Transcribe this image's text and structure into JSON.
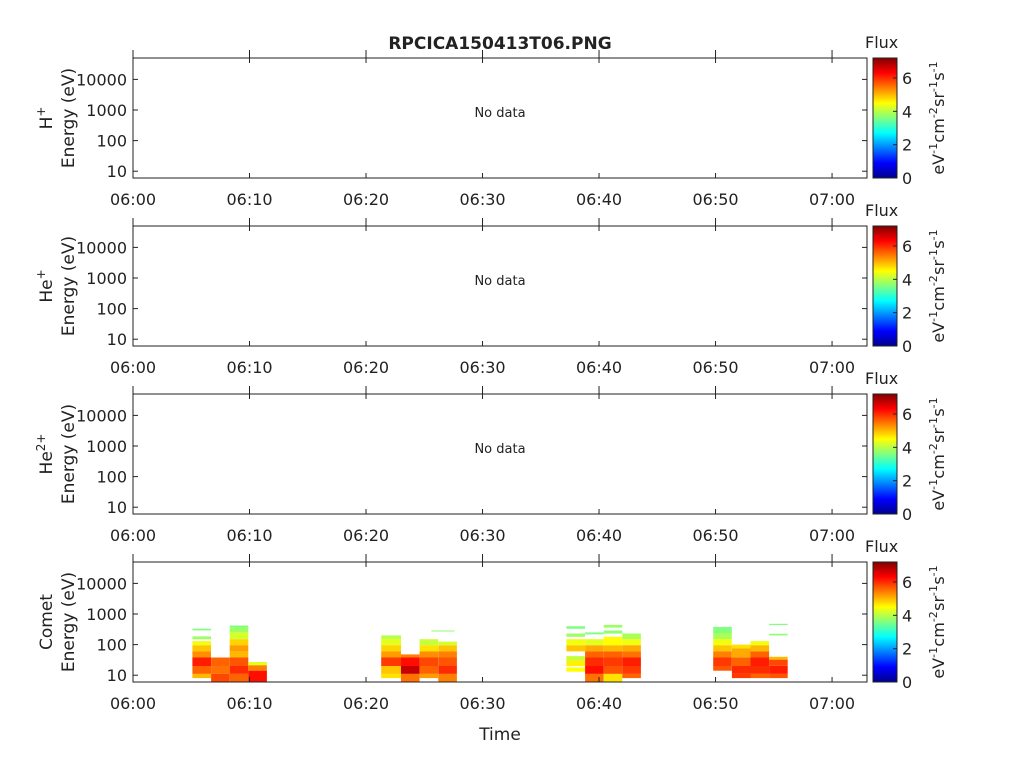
{
  "chart_data": {
    "type": "heatmap",
    "title": "RPCICA150413T06.PNG",
    "xlabel": "Time",
    "x_range_minutes_after_06_00": [
      0,
      63
    ],
    "x_ticks": [
      "06:00",
      "06:10",
      "06:20",
      "06:30",
      "06:40",
      "06:50",
      "07:00"
    ],
    "y_scale": "log",
    "ylim_eV": [
      6,
      50000
    ],
    "y_ticks": [
      "10",
      "100",
      "1000",
      "10000"
    ],
    "colorbar": {
      "title": "Flux",
      "range": [
        0,
        7.2
      ],
      "ticks": [
        "0",
        "2",
        "4",
        "6"
      ],
      "unit_base": "eV",
      "unit_cm": "cm",
      "unit_sr": "sr",
      "unit_s": "s",
      "exp_neg1": "-1",
      "exp_neg2": "-2"
    },
    "panels": [
      {
        "species_base": "H",
        "species_charge": "+",
        "ylabel": "Energy (eV)",
        "note": "No data",
        "cells": []
      },
      {
        "species_base": "He",
        "species_charge": "+",
        "ylabel": "Energy (eV)",
        "note": "No data",
        "cells": []
      },
      {
        "species_base": "He",
        "species_charge": "2+",
        "ylabel": "Energy (eV)",
        "note": "No data",
        "cells": []
      },
      {
        "species_base": "Comet",
        "species_charge": "",
        "ylabel": "Energy (eV)",
        "note": "",
        "cells": [
          {
            "t0": 5.1,
            "t1": 6.7,
            "e0": 290,
            "e1": 330,
            "v": 3.6
          },
          {
            "t0": 5.1,
            "t1": 6.7,
            "e0": 150,
            "e1": 185,
            "v": 3.8
          },
          {
            "t0": 5.1,
            "t1": 6.7,
            "e0": 95,
            "e1": 130,
            "v": 4.4
          },
          {
            "t0": 5.1,
            "t1": 6.7,
            "e0": 60,
            "e1": 95,
            "v": 4.9
          },
          {
            "t0": 5.1,
            "t1": 6.7,
            "e0": 38,
            "e1": 60,
            "v": 5.3
          },
          {
            "t0": 5.1,
            "t1": 6.7,
            "e0": 20,
            "e1": 38,
            "v": 6.1
          },
          {
            "t0": 5.1,
            "t1": 6.7,
            "e0": 11,
            "e1": 20,
            "v": 5.6
          },
          {
            "t0": 5.1,
            "t1": 6.7,
            "e0": 8,
            "e1": 11,
            "v": 5.0
          },
          {
            "t0": 6.7,
            "t1": 8.3,
            "e0": 20,
            "e1": 38,
            "v": 5.6
          },
          {
            "t0": 6.7,
            "t1": 8.3,
            "e0": 11,
            "e1": 20,
            "v": 5.5
          },
          {
            "t0": 6.7,
            "t1": 8.3,
            "e0": 6,
            "e1": 11,
            "v": 5.8
          },
          {
            "t0": 8.3,
            "t1": 9.9,
            "e0": 360,
            "e1": 420,
            "v": 3.6
          },
          {
            "t0": 8.3,
            "t1": 9.9,
            "e0": 250,
            "e1": 360,
            "v": 3.8
          },
          {
            "t0": 8.3,
            "t1": 9.9,
            "e0": 150,
            "e1": 250,
            "v": 4.2
          },
          {
            "t0": 8.3,
            "t1": 9.9,
            "e0": 95,
            "e1": 150,
            "v": 4.8
          },
          {
            "t0": 8.3,
            "t1": 9.9,
            "e0": 60,
            "e1": 95,
            "v": 5.2
          },
          {
            "t0": 8.3,
            "t1": 9.9,
            "e0": 38,
            "e1": 60,
            "v": 5.0
          },
          {
            "t0": 8.3,
            "t1": 9.9,
            "e0": 20,
            "e1": 38,
            "v": 5.7
          },
          {
            "t0": 8.3,
            "t1": 9.9,
            "e0": 11,
            "e1": 20,
            "v": 6.0
          },
          {
            "t0": 8.3,
            "t1": 9.9,
            "e0": 6,
            "e1": 11,
            "v": 5.6
          },
          {
            "t0": 9.9,
            "t1": 11.5,
            "e0": 21,
            "e1": 27,
            "v": 4.3
          },
          {
            "t0": 9.9,
            "t1": 11.5,
            "e0": 14,
            "e1": 21,
            "v": 5.4
          },
          {
            "t0": 9.9,
            "t1": 11.5,
            "e0": 6,
            "e1": 14,
            "v": 6.2
          },
          {
            "t0": 21.3,
            "t1": 23.0,
            "e0": 150,
            "e1": 200,
            "v": 4.0
          },
          {
            "t0": 21.3,
            "t1": 23.0,
            "e0": 95,
            "e1": 150,
            "v": 4.3
          },
          {
            "t0": 21.3,
            "t1": 23.0,
            "e0": 60,
            "e1": 95,
            "v": 4.8
          },
          {
            "t0": 21.3,
            "t1": 23.0,
            "e0": 38,
            "e1": 60,
            "v": 5.2
          },
          {
            "t0": 21.3,
            "t1": 23.0,
            "e0": 20,
            "e1": 38,
            "v": 5.9
          },
          {
            "t0": 21.3,
            "t1": 23.0,
            "e0": 11,
            "e1": 20,
            "v": 4.9
          },
          {
            "t0": 21.3,
            "t1": 23.0,
            "e0": 8,
            "e1": 11,
            "v": 4.7
          },
          {
            "t0": 23.0,
            "t1": 24.6,
            "e0": 38,
            "e1": 48,
            "v": 5.4
          },
          {
            "t0": 23.0,
            "t1": 24.6,
            "e0": 20,
            "e1": 38,
            "v": 6.2
          },
          {
            "t0": 23.0,
            "t1": 24.6,
            "e0": 11,
            "e1": 20,
            "v": 6.7
          },
          {
            "t0": 23.0,
            "t1": 24.6,
            "e0": 6,
            "e1": 11,
            "v": 5.5
          },
          {
            "t0": 24.6,
            "t1": 26.2,
            "e0": 95,
            "e1": 150,
            "v": 4.1
          },
          {
            "t0": 24.6,
            "t1": 26.2,
            "e0": 60,
            "e1": 95,
            "v": 4.7
          },
          {
            "t0": 24.6,
            "t1": 26.2,
            "e0": 38,
            "e1": 60,
            "v": 5.3
          },
          {
            "t0": 24.6,
            "t1": 26.2,
            "e0": 20,
            "e1": 38,
            "v": 5.8
          },
          {
            "t0": 24.6,
            "t1": 26.2,
            "e0": 11,
            "e1": 20,
            "v": 5.6
          },
          {
            "t0": 24.6,
            "t1": 26.2,
            "e0": 8,
            "e1": 11,
            "v": 5.2
          },
          {
            "t0": 26.2,
            "t1": 27.8,
            "e0": 95,
            "e1": 125,
            "v": 4.2
          },
          {
            "t0": 26.2,
            "t1": 27.8,
            "e0": 60,
            "e1": 95,
            "v": 4.9
          },
          {
            "t0": 26.2,
            "t1": 27.8,
            "e0": 38,
            "e1": 60,
            "v": 5.4
          },
          {
            "t0": 26.2,
            "t1": 27.8,
            "e0": 20,
            "e1": 38,
            "v": 5.7
          },
          {
            "t0": 26.2,
            "t1": 27.8,
            "e0": 11,
            "e1": 20,
            "v": 6.0
          },
          {
            "t0": 26.2,
            "t1": 27.8,
            "e0": 6,
            "e1": 11,
            "v": 5.4
          },
          {
            "t0": 25.6,
            "t1": 27.6,
            "e0": 270,
            "e1": 290,
            "v": 3.7
          },
          {
            "t0": 37.2,
            "t1": 38.8,
            "e0": 330,
            "e1": 400,
            "v": 3.6
          },
          {
            "t0": 37.2,
            "t1": 38.8,
            "e0": 180,
            "e1": 230,
            "v": 3.8
          },
          {
            "t0": 37.2,
            "t1": 38.8,
            "e0": 95,
            "e1": 150,
            "v": 4.4
          },
          {
            "t0": 37.2,
            "t1": 38.8,
            "e0": 60,
            "e1": 95,
            "v": 4.9
          },
          {
            "t0": 37.2,
            "t1": 38.8,
            "e0": 30,
            "e1": 42,
            "v": 4.1
          },
          {
            "t0": 37.2,
            "t1": 38.8,
            "e0": 20,
            "e1": 30,
            "v": 4.6
          },
          {
            "t0": 37.2,
            "t1": 38.8,
            "e0": 13,
            "e1": 18,
            "v": 4.5
          },
          {
            "t0": 38.8,
            "t1": 40.4,
            "e0": 215,
            "e1": 250,
            "v": 3.6
          },
          {
            "t0": 38.8,
            "t1": 40.4,
            "e0": 95,
            "e1": 150,
            "v": 4.3
          },
          {
            "t0": 38.8,
            "t1": 40.4,
            "e0": 60,
            "e1": 95,
            "v": 5.1
          },
          {
            "t0": 38.8,
            "t1": 40.4,
            "e0": 38,
            "e1": 60,
            "v": 5.6
          },
          {
            "t0": 38.8,
            "t1": 40.4,
            "e0": 20,
            "e1": 38,
            "v": 6.0
          },
          {
            "t0": 38.8,
            "t1": 40.4,
            "e0": 11,
            "e1": 20,
            "v": 6.2
          },
          {
            "t0": 38.8,
            "t1": 40.4,
            "e0": 6,
            "e1": 11,
            "v": 5.5
          },
          {
            "t0": 40.4,
            "t1": 42.0,
            "e0": 360,
            "e1": 440,
            "v": 3.8
          },
          {
            "t0": 40.4,
            "t1": 42.0,
            "e0": 230,
            "e1": 290,
            "v": 3.7
          },
          {
            "t0": 40.4,
            "t1": 42.0,
            "e0": 95,
            "e1": 180,
            "v": 4.5
          },
          {
            "t0": 40.4,
            "t1": 42.0,
            "e0": 60,
            "e1": 95,
            "v": 5.0
          },
          {
            "t0": 40.4,
            "t1": 42.0,
            "e0": 38,
            "e1": 60,
            "v": 5.6
          },
          {
            "t0": 40.4,
            "t1": 42.0,
            "e0": 20,
            "e1": 38,
            "v": 5.9
          },
          {
            "t0": 40.4,
            "t1": 42.0,
            "e0": 11,
            "e1": 20,
            "v": 5.7
          },
          {
            "t0": 40.4,
            "t1": 42.0,
            "e0": 6,
            "e1": 11,
            "v": 4.7
          },
          {
            "t0": 42.0,
            "t1": 43.6,
            "e0": 150,
            "e1": 230,
            "v": 3.9
          },
          {
            "t0": 42.0,
            "t1": 43.6,
            "e0": 95,
            "e1": 150,
            "v": 4.4
          },
          {
            "t0": 42.0,
            "t1": 43.6,
            "e0": 60,
            "e1": 95,
            "v": 5.1
          },
          {
            "t0": 42.0,
            "t1": 43.6,
            "e0": 38,
            "e1": 60,
            "v": 5.5
          },
          {
            "t0": 42.0,
            "t1": 43.6,
            "e0": 20,
            "e1": 38,
            "v": 6.1
          },
          {
            "t0": 42.0,
            "t1": 43.6,
            "e0": 11,
            "e1": 20,
            "v": 5.9
          },
          {
            "t0": 42.0,
            "t1": 43.6,
            "e0": 8,
            "e1": 11,
            "v": 5.6
          },
          {
            "t0": 49.8,
            "t1": 51.4,
            "e0": 240,
            "e1": 380,
            "v": 3.6
          },
          {
            "t0": 49.8,
            "t1": 51.4,
            "e0": 150,
            "e1": 240,
            "v": 3.9
          },
          {
            "t0": 49.8,
            "t1": 51.4,
            "e0": 95,
            "e1": 150,
            "v": 4.4
          },
          {
            "t0": 49.8,
            "t1": 51.4,
            "e0": 60,
            "e1": 95,
            "v": 4.9
          },
          {
            "t0": 49.8,
            "t1": 51.4,
            "e0": 38,
            "e1": 60,
            "v": 5.4
          },
          {
            "t0": 49.8,
            "t1": 51.4,
            "e0": 20,
            "e1": 38,
            "v": 5.9
          },
          {
            "t0": 49.8,
            "t1": 51.4,
            "e0": 14,
            "e1": 20,
            "v": 5.7
          },
          {
            "t0": 51.4,
            "t1": 53.0,
            "e0": 75,
            "e1": 100,
            "v": 4.7
          },
          {
            "t0": 51.4,
            "t1": 53.0,
            "e0": 38,
            "e1": 75,
            "v": 5.1
          },
          {
            "t0": 51.4,
            "t1": 53.0,
            "e0": 20,
            "e1": 38,
            "v": 5.6
          },
          {
            "t0": 51.4,
            "t1": 53.0,
            "e0": 11,
            "e1": 20,
            "v": 6.0
          },
          {
            "t0": 51.4,
            "t1": 53.0,
            "e0": 8,
            "e1": 11,
            "v": 5.9
          },
          {
            "t0": 53.0,
            "t1": 54.6,
            "e0": 95,
            "e1": 130,
            "v": 4.4
          },
          {
            "t0": 53.0,
            "t1": 54.6,
            "e0": 60,
            "e1": 95,
            "v": 5.0
          },
          {
            "t0": 53.0,
            "t1": 54.6,
            "e0": 38,
            "e1": 60,
            "v": 5.6
          },
          {
            "t0": 53.0,
            "t1": 54.6,
            "e0": 20,
            "e1": 38,
            "v": 6.1
          },
          {
            "t0": 53.0,
            "t1": 54.6,
            "e0": 11,
            "e1": 20,
            "v": 6.0
          },
          {
            "t0": 53.0,
            "t1": 54.6,
            "e0": 8,
            "e1": 11,
            "v": 5.6
          },
          {
            "t0": 54.6,
            "t1": 56.2,
            "e0": 440,
            "e1": 480,
            "v": 3.6
          },
          {
            "t0": 54.6,
            "t1": 56.2,
            "e0": 200,
            "e1": 225,
            "v": 3.7
          },
          {
            "t0": 54.6,
            "t1": 56.2,
            "e0": 32,
            "e1": 40,
            "v": 5.0
          },
          {
            "t0": 54.6,
            "t1": 56.2,
            "e0": 20,
            "e1": 32,
            "v": 5.8
          },
          {
            "t0": 54.6,
            "t1": 56.2,
            "e0": 11,
            "e1": 20,
            "v": 6.1
          },
          {
            "t0": 54.6,
            "t1": 56.2,
            "e0": 8,
            "e1": 11,
            "v": 5.7
          }
        ]
      }
    ]
  }
}
